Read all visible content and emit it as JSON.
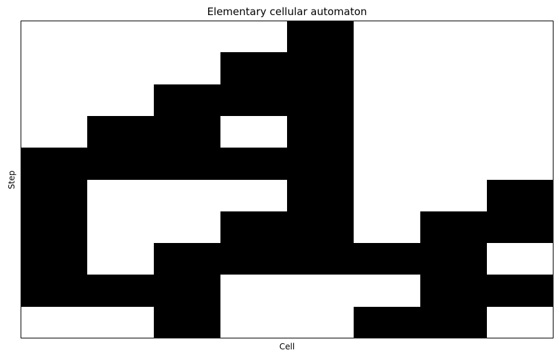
{
  "chart_data": {
    "type": "heatmap",
    "title": "Elementary cellular automaton",
    "xlabel": "Cell",
    "ylabel": "Step",
    "n_cells": 8,
    "n_steps": 10,
    "colors": {
      "0": "#ffffff",
      "1": "#000000",
      "frame": "#000000"
    },
    "grid": false,
    "x_ticks": [],
    "y_ticks": [],
    "rows": [
      [
        0,
        0,
        0,
        0,
        1,
        0,
        0,
        0
      ],
      [
        0,
        0,
        0,
        1,
        1,
        0,
        0,
        0
      ],
      [
        0,
        0,
        1,
        1,
        1,
        0,
        0,
        0
      ],
      [
        0,
        1,
        1,
        0,
        1,
        0,
        0,
        0
      ],
      [
        1,
        1,
        1,
        1,
        1,
        0,
        0,
        0
      ],
      [
        1,
        0,
        0,
        0,
        1,
        0,
        0,
        1
      ],
      [
        1,
        0,
        0,
        1,
        1,
        0,
        1,
        1
      ],
      [
        1,
        0,
        1,
        1,
        1,
        1,
        1,
        0
      ],
      [
        1,
        1,
        1,
        0,
        0,
        0,
        1,
        1
      ],
      [
        0,
        0,
        1,
        0,
        0,
        1,
        1,
        0
      ]
    ]
  }
}
